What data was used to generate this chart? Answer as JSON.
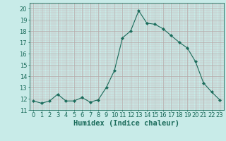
{
  "x": [
    0,
    1,
    2,
    3,
    4,
    5,
    6,
    7,
    8,
    9,
    10,
    11,
    12,
    13,
    14,
    15,
    16,
    17,
    18,
    19,
    20,
    21,
    22,
    23
  ],
  "y": [
    11.8,
    11.6,
    11.8,
    12.4,
    11.8,
    11.8,
    12.1,
    11.7,
    11.9,
    13.0,
    14.5,
    17.4,
    18.0,
    19.8,
    18.7,
    18.6,
    18.2,
    17.6,
    17.0,
    16.5,
    15.3,
    13.4,
    12.6,
    11.9
  ],
  "line_color": "#1a6b5a",
  "marker": "D",
  "marker_size": 2.2,
  "bg_color": "#c8ebe8",
  "grid_major_color": "#b0b0b8",
  "grid_minor_color": "#c8d8d8",
  "xlabel": "Humidex (Indice chaleur)",
  "ylim": [
    11,
    20.5
  ],
  "xlim": [
    -0.5,
    23.5
  ],
  "yticks": [
    11,
    12,
    13,
    14,
    15,
    16,
    17,
    18,
    19,
    20
  ],
  "xticks": [
    0,
    1,
    2,
    3,
    4,
    5,
    6,
    7,
    8,
    9,
    10,
    11,
    12,
    13,
    14,
    15,
    16,
    17,
    18,
    19,
    20,
    21,
    22,
    23
  ],
  "tick_label_fontsize": 6,
  "xlabel_fontsize": 7.5,
  "tick_color": "#1a6b5a",
  "axis_color": "#1a6b5a",
  "linewidth": 0.8
}
